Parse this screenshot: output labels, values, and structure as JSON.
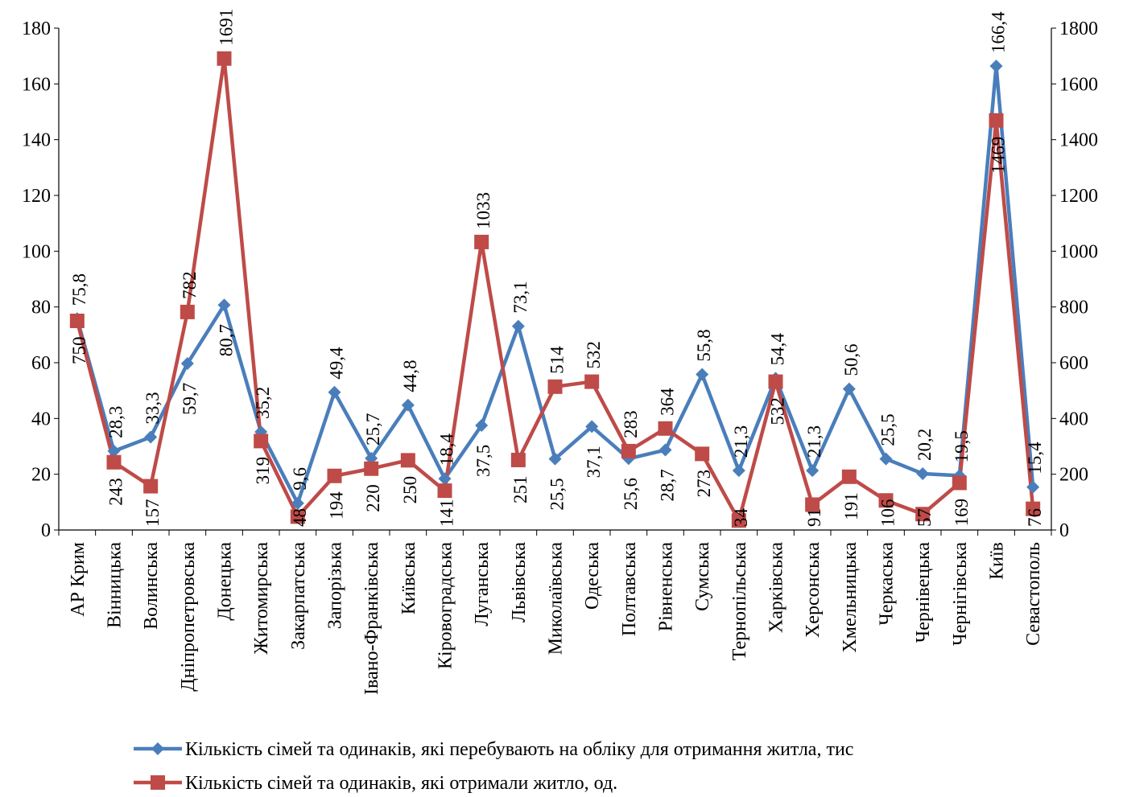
{
  "chart_data": {
    "type": "line",
    "title": "",
    "categories": [
      "АР Крим",
      "Вінницька",
      "Волинська",
      "Дніпропетровська",
      "Донецька",
      "Житомирська",
      "Закарпатська",
      "Запорізька",
      "Івано-Франківська",
      "Київська",
      "Кіровоградська",
      "Луганська",
      "Львівська",
      "Миколаївська",
      "Одеська",
      "Полтавська",
      "Рівненська",
      "Сумська",
      "Тернопільська",
      "Харківська",
      "Херсонська",
      "Хмельницька",
      "Черкаська",
      "Чернівецька",
      "Чернігівська",
      "Київ",
      "Севастополь"
    ],
    "ylim": [
      0,
      180
    ],
    "y_ticks": [
      "0",
      "20",
      "40",
      "60",
      "80",
      "100",
      "120",
      "140",
      "160",
      "180"
    ],
    "y2lim": [
      0,
      1800
    ],
    "y2_ticks": [
      "0",
      "200",
      "400",
      "600",
      "800",
      "1000",
      "1200",
      "1400",
      "1600",
      "1800"
    ],
    "grid": false,
    "legend_position": "bottom",
    "series": [
      {
        "name": "Кількість сімей та одинаків, які перебувають на обліку для отримання житла, тис",
        "axis": "left",
        "color": "#4A7EBB",
        "marker": "diamond",
        "values": [
          75.8,
          28.3,
          33.3,
          59.7,
          80.7,
          35.2,
          9.6,
          49.4,
          25.7,
          44.8,
          18.4,
          37.5,
          73.1,
          25.5,
          37.1,
          25.6,
          28.7,
          55.8,
          21.3,
          54.4,
          21.3,
          50.6,
          25.5,
          20.2,
          19.5,
          166.4,
          15.4
        ],
        "labels": [
          "75,8",
          "28,3",
          "33,3",
          "59,7",
          "80,7",
          "35,2",
          "9,6",
          "49,4",
          "25,7",
          "44,8",
          "18,4",
          "37,5",
          "73,1",
          "25,5",
          "37,1",
          "25,6",
          "28,7",
          "55,8",
          "21,3",
          "54,4",
          "21,3",
          "50,6",
          "25,5",
          "20,2",
          "19,5",
          "166,4",
          "15,4"
        ]
      },
      {
        "name": "Кількість сімей та одинаків, які отримали житло, од.",
        "axis": "right",
        "color": "#BE4B48",
        "marker": "square",
        "values": [
          750,
          243,
          157,
          782,
          1691,
          319,
          48,
          194,
          220,
          250,
          141,
          1033,
          251,
          514,
          532,
          283,
          364,
          273,
          34,
          532,
          91,
          191,
          106,
          57,
          169,
          1469,
          76
        ],
        "labels": [
          "750",
          "243",
          "157",
          "782",
          "1691",
          "319",
          "48",
          "194",
          "220",
          "250",
          "141",
          "1033",
          "251",
          "514",
          "532",
          "283",
          "364",
          "273",
          "34",
          "532",
          "91",
          "191",
          "106",
          "57",
          "169",
          "1469",
          "76"
        ]
      }
    ]
  }
}
